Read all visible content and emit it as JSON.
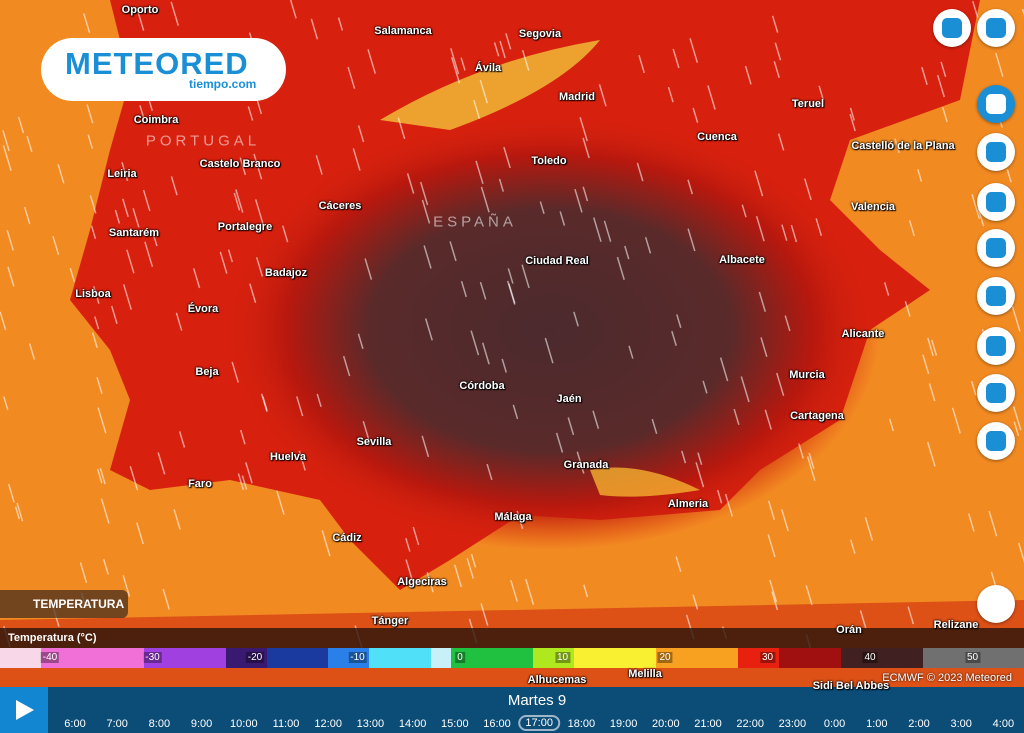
{
  "logo": {
    "brand": "METEORED",
    "sub": "tiempo.com"
  },
  "countries": [
    "PORTUGAL",
    "ESPAÑA"
  ],
  "cities": [
    "Oporto",
    "Salamanca",
    "Segovia",
    "Ávila",
    "Madrid",
    "Teruel",
    "Coimbra",
    "Cuenca",
    "Castelló de la Plana",
    "Castelo Branco",
    "Toledo",
    "Leiria",
    "Cáceres",
    "Valencia",
    "Portalegre",
    "Santarém",
    "Ciudad Real",
    "Albacete",
    "Badajoz",
    "Lisboa",
    "Évora",
    "Alicante",
    "Beja",
    "Murcia",
    "Córdoba",
    "Jaén",
    "Cartagena",
    "Sevilla",
    "Huelva",
    "Granada",
    "Faro",
    "Almeria",
    "Málaga",
    "Cádiz",
    "Algeciras",
    "Tánger",
    "Orán",
    "Relizane",
    "Melilla",
    "Alhucemas",
    "Sidi Bel Abbes"
  ],
  "layer": "TEMPERATURA",
  "legend": {
    "title": "Temperatura (°C)",
    "labels": [
      -40,
      -30,
      -20,
      -10,
      0,
      10,
      20,
      30,
      40,
      50
    ]
  },
  "attribution": "ECMWF © 2023 Meteored",
  "timeline": {
    "day": "Martes 9",
    "hours": [
      "6:00",
      "7:00",
      "8:00",
      "9:00",
      "10:00",
      "11:00",
      "12:00",
      "13:00",
      "14:00",
      "15:00",
      "16:00",
      "17:00",
      "18:00",
      "19:00",
      "20:00",
      "21:00",
      "22:00",
      "23:00",
      "0:00",
      "1:00",
      "2:00",
      "3:00",
      "4:00"
    ],
    "selected": 11
  }
}
